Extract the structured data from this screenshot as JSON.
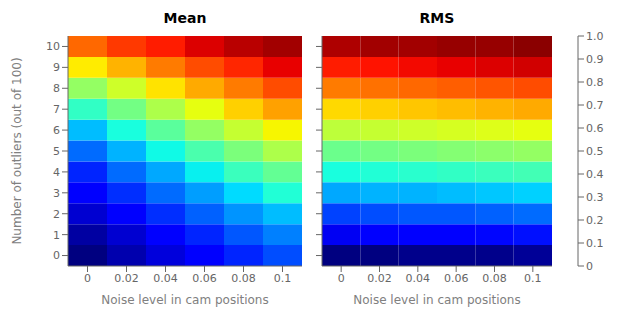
{
  "chart_data": [
    {
      "type": "heatmap",
      "title": "Mean",
      "x_label": "Noise level in cam positions",
      "y_label": "Number of outliers (out of 100)",
      "x": [
        0.0,
        0.02,
        0.04,
        0.06,
        0.08,
        0.1
      ],
      "y": [
        0,
        1,
        2,
        3,
        4,
        5,
        6,
        7,
        8,
        9,
        10
      ],
      "values": [
        [
          0.0,
          0.04,
          0.08,
          0.12,
          0.16,
          0.2
        ],
        [
          0.03,
          0.07,
          0.12,
          0.16,
          0.21,
          0.25
        ],
        [
          0.07,
          0.12,
          0.17,
          0.22,
          0.27,
          0.31
        ],
        [
          0.11,
          0.17,
          0.23,
          0.28,
          0.34,
          0.39
        ],
        [
          0.16,
          0.23,
          0.29,
          0.36,
          0.42,
          0.47
        ],
        [
          0.23,
          0.3,
          0.37,
          0.44,
          0.5,
          0.56
        ],
        [
          0.31,
          0.38,
          0.46,
          0.53,
          0.59,
          0.65
        ],
        [
          0.41,
          0.49,
          0.56,
          0.63,
          0.69,
          0.74
        ],
        [
          0.53,
          0.6,
          0.67,
          0.73,
          0.78,
          0.83
        ],
        [
          0.66,
          0.72,
          0.78,
          0.83,
          0.87,
          0.91
        ],
        [
          0.8,
          0.85,
          0.88,
          0.92,
          0.95,
          0.97
        ]
      ],
      "xlim": [
        -0.01,
        0.11
      ],
      "xticks": [
        0,
        0.02,
        0.04,
        0.06,
        0.08,
        0.1
      ],
      "ylim": [
        -0.5,
        10.5
      ],
      "yticks": [
        0,
        1,
        2,
        3,
        4,
        5,
        6,
        7,
        8,
        9,
        10
      ]
    },
    {
      "type": "heatmap",
      "title": "RMS",
      "x_label": "Noise level in cam positions",
      "x": [
        0.0,
        0.02,
        0.04,
        0.06,
        0.08,
        0.1
      ],
      "y": [
        0,
        1,
        2,
        3,
        4,
        5,
        6,
        7,
        8,
        9,
        10
      ],
      "values": [
        [
          0.0,
          0.0,
          0.01,
          0.01,
          0.01,
          0.02
        ],
        [
          0.1,
          0.11,
          0.12,
          0.12,
          0.13,
          0.14
        ],
        [
          0.19,
          0.2,
          0.21,
          0.21,
          0.22,
          0.23
        ],
        [
          0.29,
          0.3,
          0.3,
          0.31,
          0.32,
          0.33
        ],
        [
          0.38,
          0.39,
          0.4,
          0.41,
          0.42,
          0.43
        ],
        [
          0.48,
          0.49,
          0.5,
          0.51,
          0.52,
          0.53
        ],
        [
          0.58,
          0.59,
          0.6,
          0.61,
          0.62,
          0.63
        ],
        [
          0.68,
          0.69,
          0.7,
          0.71,
          0.72,
          0.73
        ],
        [
          0.78,
          0.79,
          0.8,
          0.81,
          0.82,
          0.83
        ],
        [
          0.88,
          0.89,
          0.9,
          0.91,
          0.92,
          0.93
        ],
        [
          0.96,
          0.97,
          0.97,
          0.98,
          0.98,
          0.99
        ]
      ],
      "xlim": [
        -0.01,
        0.11
      ],
      "xticks": [
        0,
        0.02,
        0.04,
        0.06,
        0.08,
        0.1
      ],
      "ylim": [
        -0.5,
        10.5
      ],
      "yticks": [
        0,
        1,
        2,
        3,
        4,
        5,
        6,
        7,
        8,
        9,
        10
      ],
      "tick_labels": "x",
      "colorbar": {
        "range": [
          0.0,
          1.0
        ],
        "ticks": [
          0,
          0.1,
          0.2,
          0.3,
          0.4,
          0.5,
          0.6,
          0.7,
          0.8,
          0.9,
          {
            "value": 1,
            "label": "1.0"
          }
        ]
      }
    }
  ]
}
